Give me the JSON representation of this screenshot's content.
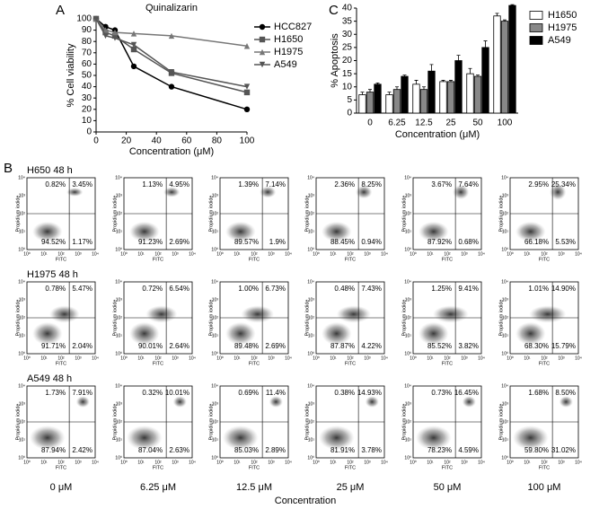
{
  "chart_data": [
    {
      "type": "line",
      "panel_label": "A",
      "title": "Quinalizarin",
      "xlabel": "Concentration (μM)",
      "ylabel": "% Cell viability",
      "x": [
        0,
        6.25,
        12.5,
        25,
        50,
        100
      ],
      "xlim": [
        0,
        100
      ],
      "xticks": [
        0,
        20,
        40,
        60,
        80,
        100
      ],
      "ylim": [
        0,
        100
      ],
      "yticks": [
        0,
        10,
        20,
        30,
        40,
        50,
        60,
        70,
        80,
        90,
        100
      ],
      "series": [
        {
          "name": "HCC827",
          "color": "#000000",
          "marker": "circle",
          "values": [
            100,
            93,
            90,
            58,
            40,
            20
          ]
        },
        {
          "name": "H1650",
          "color": "#555555",
          "marker": "square",
          "values": [
            100,
            88,
            85,
            73,
            52,
            35
          ]
        },
        {
          "name": "H1975",
          "color": "#777777",
          "marker": "triangle",
          "values": [
            100,
            90,
            88,
            87,
            85,
            76
          ]
        },
        {
          "name": "A549",
          "color": "#555555",
          "marker": "triangle-down",
          "values": [
            100,
            85,
            83,
            77,
            53,
            40
          ]
        }
      ]
    },
    {
      "type": "bar",
      "panel_label": "C",
      "xlabel": "Concentration (μM)",
      "ylabel": "% Apoptosis",
      "categories": [
        "0",
        "6.25",
        "12.5",
        "25",
        "50",
        "100"
      ],
      "ylim": [
        0,
        40
      ],
      "yticks": [
        0,
        5,
        10,
        15,
        20,
        25,
        30,
        35,
        40
      ],
      "series": [
        {
          "name": "H1650",
          "color": "#ffffff",
          "values": [
            7,
            7,
            11,
            12,
            15,
            37
          ],
          "errors": [
            1,
            1,
            1.5,
            0.5,
            2,
            1
          ]
        },
        {
          "name": "H1975",
          "color": "#888888",
          "values": [
            8,
            9,
            9,
            12,
            14,
            35
          ],
          "errors": [
            1,
            1,
            1,
            0.5,
            0.5,
            0.5
          ]
        },
        {
          "name": "A549",
          "color": "#000000",
          "values": [
            11,
            14,
            16,
            20,
            25,
            41
          ],
          "errors": [
            0.5,
            0.5,
            2.5,
            2,
            2.5,
            0.3
          ]
        }
      ]
    }
  ],
  "panel_b": {
    "panel_label": "B",
    "x_axis_label": "FITC",
    "y_axis_label": "Propidium iodide",
    "xlabel": "Concentration",
    "log_ticks": [
      "10⁰",
      "10¹",
      "10²",
      "10³",
      "10⁴"
    ],
    "columns": [
      "0 μM",
      "6.25 μM",
      "12.5 μM",
      "25 μM",
      "50 μM",
      "100 μM"
    ],
    "rows": [
      {
        "title": "H650 48 h",
        "quadrants": [
          [
            "0.82%",
            "3.45%",
            "94.52%",
            "1.17%"
          ],
          [
            "1.13%",
            "4.95%",
            "91.23%",
            "2.69%"
          ],
          [
            "1.39%",
            "7.14%",
            "89.57%",
            "1.9%"
          ],
          [
            "2.36%",
            "8.25%",
            "88.45%",
            "0.94%"
          ],
          [
            "3.67%",
            "7.64%",
            "87.92%",
            "0.68%"
          ],
          [
            "2.95%",
            "25.34%",
            "66.18%",
            "5.53%"
          ]
        ]
      },
      {
        "title": "H1975 48 h",
        "quadrants": [
          [
            "0.78%",
            "5.47%",
            "91.71%",
            "2.04%"
          ],
          [
            "0.72%",
            "6.54%",
            "90.01%",
            "2.64%"
          ],
          [
            "1.00%",
            "6.73%",
            "89.48%",
            "2.69%"
          ],
          [
            "0.48%",
            "7.43%",
            "87.87%",
            "4.22%"
          ],
          [
            "1.25%",
            "9.41%",
            "85.52%",
            "3.82%"
          ],
          [
            "1.01%",
            "14.90%",
            "68.30%",
            "15.79%"
          ]
        ]
      },
      {
        "title": "A549 48 h",
        "quadrants": [
          [
            "1.73%",
            "7.91%",
            "87.94%",
            "2.42%"
          ],
          [
            "0.32%",
            "10.01%",
            "87.04%",
            "2.63%"
          ],
          [
            "0.69%",
            "11.4%",
            "85.03%",
            "2.89%"
          ],
          [
            "0.38%",
            "14.93%",
            "81.91%",
            "3.78%"
          ],
          [
            "0.73%",
            "16.45%",
            "78.23%",
            "4.59%"
          ],
          [
            "1.68%",
            "8.50%",
            "59.80%",
            "31.02%"
          ]
        ]
      }
    ]
  }
}
